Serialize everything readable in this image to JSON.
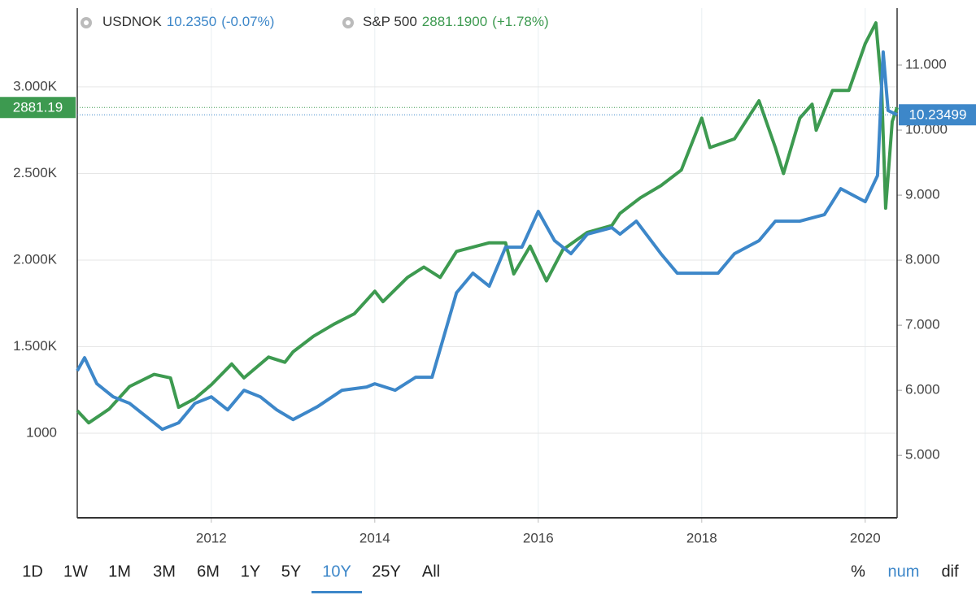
{
  "chart_data": {
    "type": "line",
    "legend": [
      {
        "name": "USDNOK",
        "value_text": "10.2350",
        "change": "(-0.07%)",
        "color": "#3d87c9"
      },
      {
        "name": "S&P 500",
        "value_text": "2881.1900",
        "change": "(+1.78%)",
        "color": "#3d9a50"
      }
    ],
    "xlim": [
      2010.36,
      2020.39
    ],
    "xticks": [
      2012,
      2014,
      2016,
      2018,
      2020
    ],
    "ylim": [
      512,
      3455
    ],
    "yticks": [
      {
        "value": 1000,
        "label": "1000"
      },
      {
        "value": 1500,
        "label": "1.500K"
      },
      {
        "value": 2000,
        "label": "2.000K"
      },
      {
        "value": 2500,
        "label": "2.500K"
      },
      {
        "value": 3000,
        "label": "3.000K"
      }
    ],
    "y2lim": [
      4.04,
      11.875
    ],
    "y2ticks": [
      {
        "value": 5,
        "label": "5.000"
      },
      {
        "value": 6,
        "label": "6.000"
      },
      {
        "value": 7,
        "label": "7.000"
      },
      {
        "value": 8,
        "label": "8.000"
      },
      {
        "value": 9,
        "label": "9.000"
      },
      {
        "value": 10,
        "label": "10.000"
      },
      {
        "value": 11,
        "label": "11.000"
      }
    ],
    "grid": true,
    "series": [
      {
        "name": "S&P 500",
        "color": "#3d9a50",
        "axis": "y",
        "last_price": 2881.19,
        "x": [
          2010.36,
          2010.5,
          2010.75,
          2011.0,
          2011.3,
          2011.5,
          2011.6,
          2011.8,
          2012.0,
          2012.25,
          2012.4,
          2012.7,
          2012.9,
          2013.0,
          2013.25,
          2013.5,
          2013.75,
          2014.0,
          2014.1,
          2014.4,
          2014.6,
          2014.8,
          2015.0,
          2015.4,
          2015.6,
          2015.7,
          2015.9,
          2016.1,
          2016.3,
          2016.6,
          2016.9,
          2017.0,
          2017.25,
          2017.5,
          2017.75,
          2018.0,
          2018.1,
          2018.4,
          2018.7,
          2018.9,
          2019.0,
          2019.2,
          2019.35,
          2019.4,
          2019.6,
          2019.8,
          2020.0,
          2020.13,
          2020.2,
          2020.25,
          2020.33,
          2020.39
        ],
        "values": [
          1130,
          1060,
          1140,
          1270,
          1340,
          1320,
          1150,
          1200,
          1280,
          1400,
          1320,
          1440,
          1410,
          1470,
          1560,
          1630,
          1690,
          1820,
          1760,
          1900,
          1960,
          1900,
          2050,
          2100,
          2100,
          1920,
          2080,
          1880,
          2060,
          2160,
          2200,
          2270,
          2360,
          2430,
          2520,
          2820,
          2650,
          2700,
          2920,
          2650,
          2500,
          2820,
          2900,
          2750,
          2980,
          2980,
          3250,
          3370,
          3000,
          2300,
          2800,
          2881.19
        ]
      },
      {
        "name": "USDNOK",
        "color": "#3d87c9",
        "axis": "y2",
        "last_price": 10.23499,
        "x": [
          2010.36,
          2010.45,
          2010.6,
          2010.8,
          2011.0,
          2011.2,
          2011.4,
          2011.6,
          2011.8,
          2012.0,
          2012.2,
          2012.4,
          2012.6,
          2012.8,
          2013.0,
          2013.3,
          2013.6,
          2013.9,
          2014.0,
          2014.25,
          2014.5,
          2014.7,
          2015.0,
          2015.2,
          2015.4,
          2015.6,
          2015.8,
          2016.0,
          2016.2,
          2016.4,
          2016.6,
          2016.9,
          2017.0,
          2017.2,
          2017.5,
          2017.7,
          2018.0,
          2018.2,
          2018.4,
          2018.7,
          2018.9,
          2019.2,
          2019.5,
          2019.7,
          2020.0,
          2020.15,
          2020.22,
          2020.28,
          2020.39
        ],
        "values": [
          6.3,
          6.5,
          6.1,
          5.9,
          5.8,
          5.6,
          5.4,
          5.5,
          5.8,
          5.9,
          5.7,
          6.0,
          5.9,
          5.7,
          5.55,
          5.75,
          6.0,
          6.05,
          6.1,
          6.0,
          6.2,
          6.2,
          7.5,
          7.8,
          7.6,
          8.2,
          8.2,
          8.75,
          8.3,
          8.1,
          8.4,
          8.5,
          8.4,
          8.6,
          8.1,
          7.8,
          7.8,
          7.8,
          8.1,
          8.3,
          8.6,
          8.6,
          8.7,
          9.1,
          8.9,
          9.3,
          11.2,
          10.3,
          10.235
        ]
      }
    ]
  },
  "controls": {
    "ranges": [
      "1D",
      "1W",
      "1M",
      "3M",
      "6M",
      "1Y",
      "5Y",
      "10Y",
      "25Y",
      "All"
    ],
    "selected_range": "10Y",
    "modes": [
      "%",
      "num",
      "dif"
    ],
    "selected_mode": "num"
  }
}
